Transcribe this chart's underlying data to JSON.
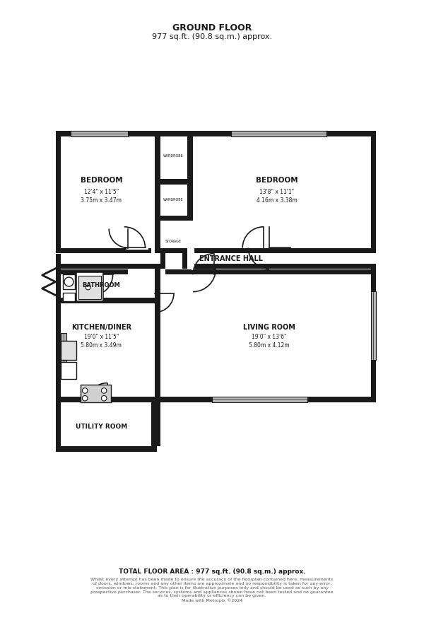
{
  "title_line1": "GROUND FLOOR",
  "title_line2": "977 sq.ft. (90.8 sq.m.) approx.",
  "footer_bold": "TOTAL FLOOR AREA : 977 sq.ft. (90.8 sq.m.) approx.",
  "footer_small": "Whilst every attempt has been made to ensure the accuracy of the floorplan contained here, measurements\nof doors, windows, rooms and any other items are approximate and no responsibility is taken for any error,\nomission or mis-statement. This plan is for illustrative purposes only and should be used as such by any\nprospective purchaser. The services, systems and appliances shown have not been tested and no guarantee\nas to their operability or efficiency can be given.\nMade with Metropix ©2024",
  "bg_color": "#ffffff",
  "wall_color": "#1a1a1a",
  "floor_color": "#ffffff",
  "light_gray": "#d0d0d0",
  "rooms": {
    "bedroom1": {
      "label": "BEDROOM",
      "size": "12'4\" x 11'5\"",
      "metric": "3.75m x 3.47m"
    },
    "bedroom2": {
      "label": "BEDROOM",
      "size": "13'8\" x 11'1\"",
      "metric": "4.16m x 3.38m"
    },
    "bathroom": {
      "label": "BATHROOM",
      "size": "",
      "metric": ""
    },
    "entrance_hall": {
      "label": "ENTRANCE HALL",
      "size": "",
      "metric": ""
    },
    "kitchen": {
      "label": "KITCHEN/DINER",
      "size": "19'0\" x 11'5\"",
      "metric": "5.80m x 3.49m"
    },
    "living_room": {
      "label": "LIVING ROOM",
      "size": "19'0\" x 13'6\"",
      "metric": "5.80m x 4.12m"
    },
    "utility": {
      "label": "UTILITY ROOM",
      "size": "",
      "metric": ""
    }
  },
  "wall_thickness": 0.15
}
